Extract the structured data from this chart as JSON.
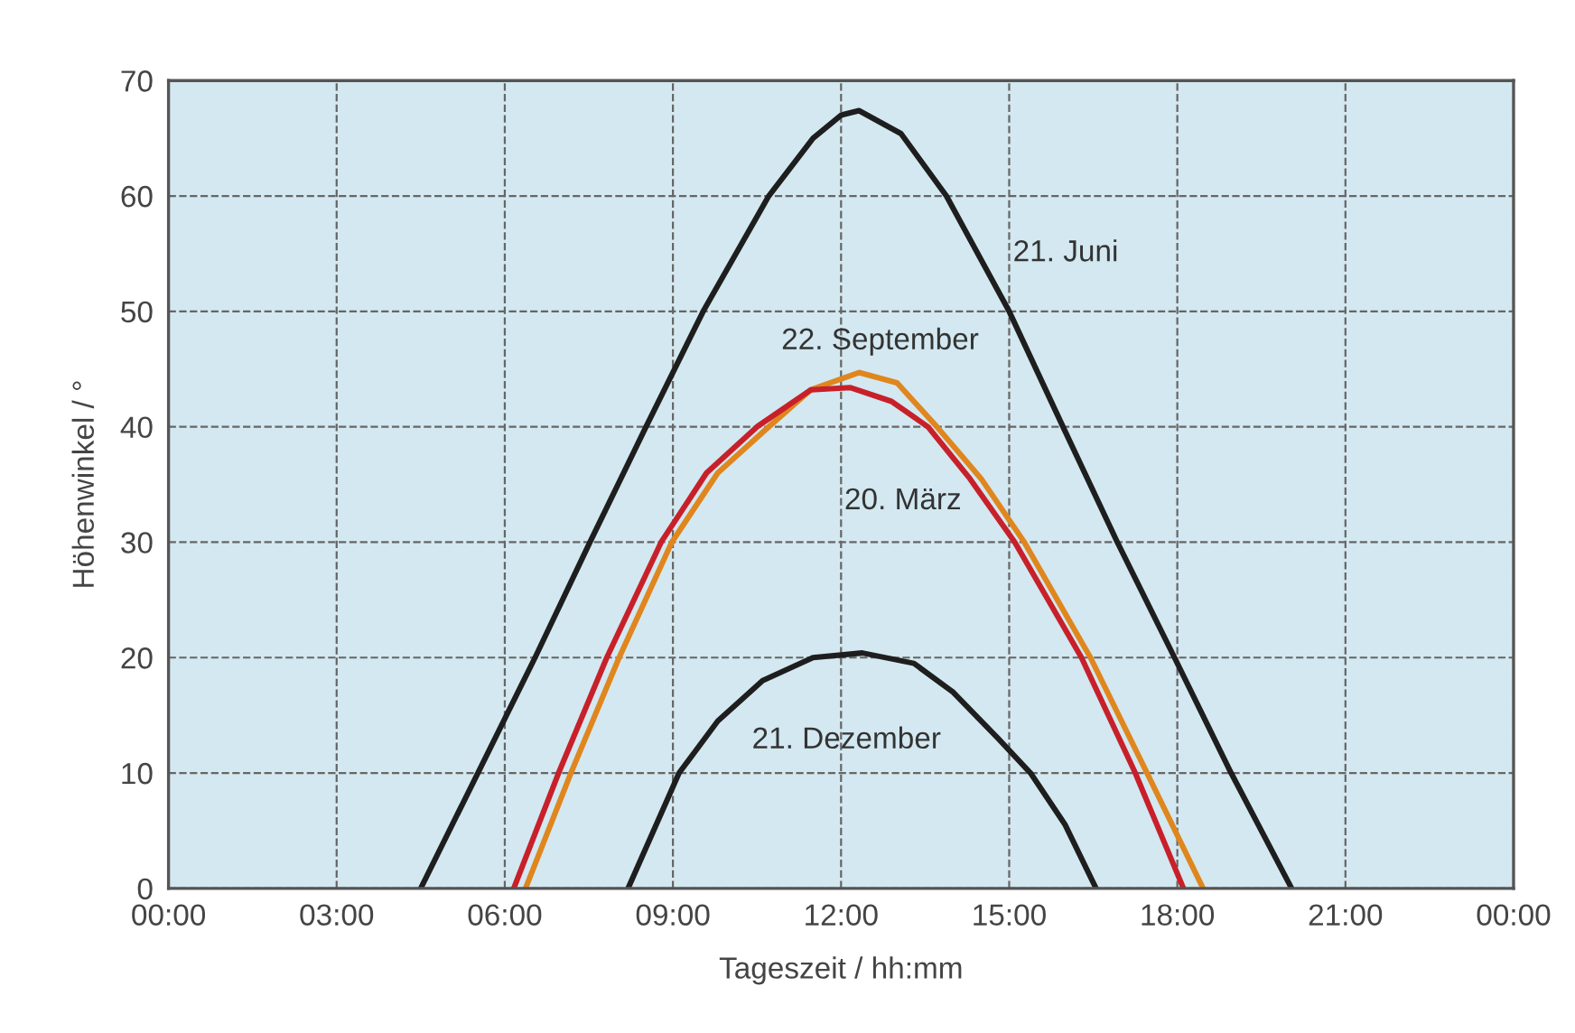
{
  "chart_data": {
    "type": "line",
    "xlabel": "Tageszeit / hh:mm",
    "ylabel": "Höhenwinkel / °",
    "xlim": [
      0,
      24
    ],
    "xticks": [
      {
        "value": 0,
        "label": "00:00"
      },
      {
        "value": 3,
        "label": "03:00"
      },
      {
        "value": 6,
        "label": "06:00"
      },
      {
        "value": 9,
        "label": "09:00"
      },
      {
        "value": 12,
        "label": "12:00"
      },
      {
        "value": 15,
        "label": "15:00"
      },
      {
        "value": 18,
        "label": "18:00"
      },
      {
        "value": 21,
        "label": "21:00"
      },
      {
        "value": 24,
        "label": "00:00"
      }
    ],
    "ylim": [
      0,
      70
    ],
    "yticks": [
      0,
      10,
      20,
      30,
      40,
      50,
      60,
      70
    ],
    "grid": true,
    "series": [
      {
        "name": "21. Juni",
        "color": "#1e1e1e",
        "x": [
          4.5,
          5.52,
          6.54,
          7.52,
          8.52,
          9.54,
          10.71,
          11.5,
          12.0,
          12.32,
          13.07,
          13.88,
          15.0,
          15.96,
          16.93,
          17.95,
          18.96,
          20.04
        ],
        "values": [
          0,
          10,
          20,
          30,
          40,
          50,
          60,
          65,
          67,
          67.4,
          65.4,
          60,
          50,
          40,
          30,
          20,
          10,
          0
        ]
      },
      {
        "name": "22. September",
        "color": "#e0861e",
        "x": [
          6.37,
          7.18,
          8.04,
          8.98,
          9.8,
          10.71,
          11.46,
          12.32,
          13.0,
          13.71,
          14.5,
          15.27,
          16.45,
          17.46,
          18.46
        ],
        "values": [
          0,
          10,
          20,
          30,
          36,
          40,
          43.2,
          44.7,
          43.8,
          40,
          35.5,
          30,
          20,
          10,
          0
        ]
      },
      {
        "name": "20. März",
        "color": "#c8202a",
        "x": [
          6.16,
          6.96,
          7.82,
          8.79,
          9.6,
          10.5,
          11.46,
          12.16,
          12.9,
          13.55,
          14.3,
          15.1,
          16.29,
          17.25,
          18.11
        ],
        "values": [
          0,
          10,
          20,
          30,
          36,
          40,
          43.2,
          43.4,
          42.2,
          40,
          35.5,
          30,
          20,
          10,
          0
        ]
      },
      {
        "name": "21. Dezember",
        "color": "#1e1e1e",
        "x": [
          8.2,
          9.11,
          9.8,
          10.6,
          11.5,
          12.38,
          13.3,
          14.0,
          14.8,
          15.38,
          16.0,
          16.55
        ],
        "values": [
          0,
          10,
          14.5,
          18,
          20,
          20.4,
          19.5,
          17,
          13,
          10,
          5.5,
          0
        ]
      }
    ]
  }
}
